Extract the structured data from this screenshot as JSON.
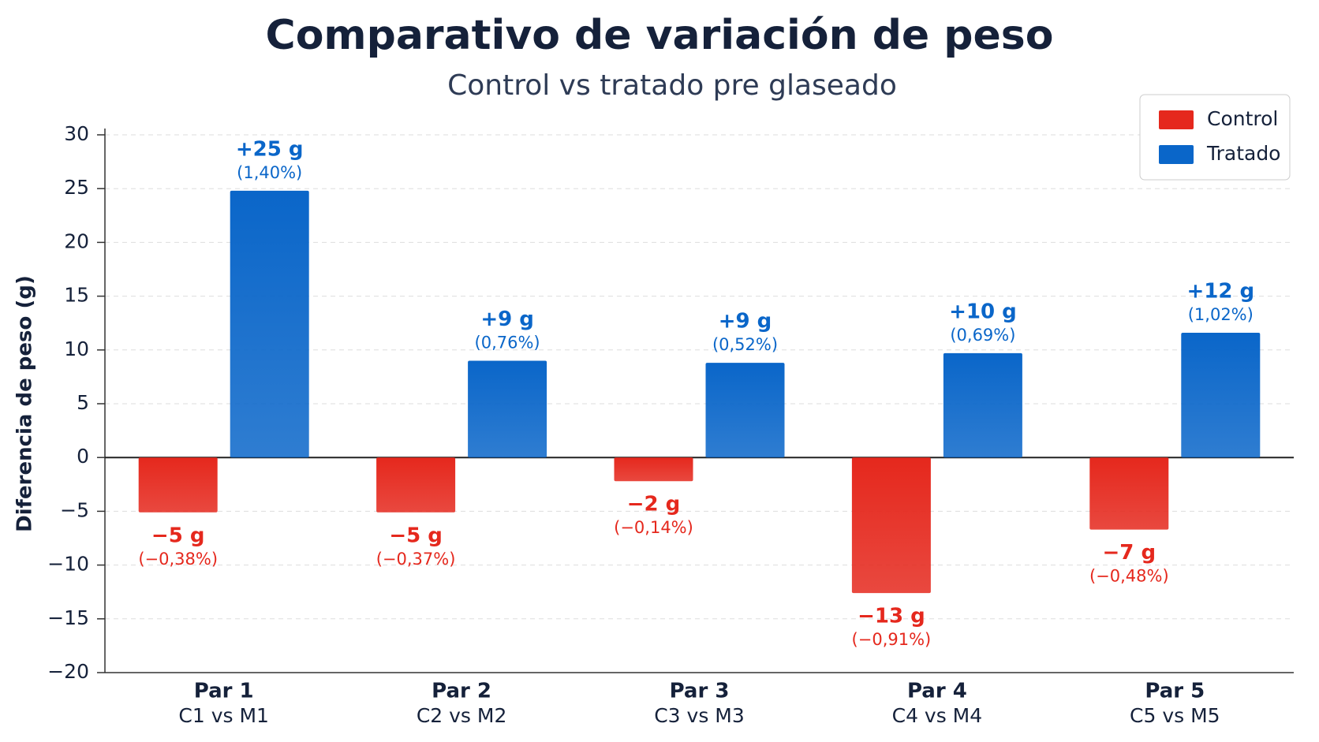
{
  "chart_data": {
    "type": "bar",
    "title": "Comparativo de variación de peso",
    "subtitle": "Control vs tratado pre glaseado",
    "y_label": "Diferencia de peso (g)",
    "categories": [
      "Par 1",
      "Par 2",
      "Par 3",
      "Par 4",
      "Par 5"
    ],
    "category_sublabels": [
      "C1 vs M1",
      "C2 vs M2",
      "C3 vs M3",
      "C4 vs M4",
      "C5 vs M5"
    ],
    "series": [
      {
        "name": "Control",
        "color": "#e5281d",
        "values": [
          -5.1,
          -5.1,
          -2.2,
          -12.6,
          -6.7
        ],
        "value_labels": [
          "−5 g",
          "−5 g",
          "−2 g",
          "−13 g",
          "−7 g"
        ],
        "percent_labels": [
          "(−0,38%)",
          "(−0,37%)",
          "(−0,14%)",
          "(−0,91%)",
          "(−0,48%)"
        ]
      },
      {
        "name": "Tratado",
        "color": "#0a66c9",
        "values": [
          24.8,
          9.0,
          8.8,
          9.7,
          11.6
        ],
        "value_labels": [
          "+25 g",
          "+9 g",
          "+9 g",
          "+10 g",
          "+12 g"
        ],
        "percent_labels": [
          "(1,40%)",
          "(0,76%)",
          "(0,52%)",
          "(0,69%)",
          "(1,02%)"
        ]
      }
    ],
    "ylim": [
      -20,
      30
    ],
    "yticks": [
      {
        "value": -20,
        "label": "−20"
      },
      {
        "value": -15,
        "label": "−15"
      },
      {
        "value": -10,
        "label": "−10"
      },
      {
        "value": -5,
        "label": "−5"
      },
      0,
      5,
      10,
      15,
      20,
      25,
      30
    ],
    "grid": true,
    "legend": "top-right"
  }
}
